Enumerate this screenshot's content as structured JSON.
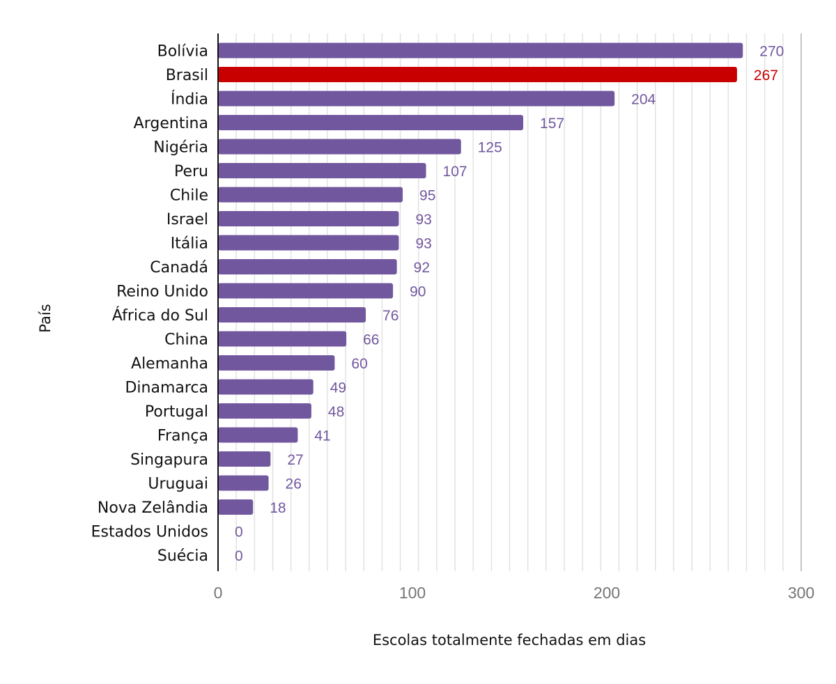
{
  "chart_data": {
    "type": "bar",
    "orientation": "horizontal",
    "categories": [
      "Bolívia",
      "Brasil",
      "Índia",
      "Argentina",
      "Nigéria",
      "Peru",
      "Chile",
      "Israel",
      "Itália",
      "Canadá",
      "Reino Unido",
      "África do Sul",
      "China",
      "Alemanha",
      "Dinamarca",
      "Portugal",
      "França",
      "Singapura",
      "Uruguai",
      "Nova Zelândia",
      "Estados Unidos",
      "Suécia"
    ],
    "values": [
      270,
      267,
      204,
      157,
      125,
      107,
      95,
      93,
      93,
      92,
      90,
      76,
      66,
      60,
      49,
      48,
      41,
      27,
      26,
      18,
      0,
      0
    ],
    "value_labels": [
      "270",
      "267",
      "204",
      "157",
      "125",
      "107",
      "95",
      "93",
      "93",
      "92",
      "90",
      "76",
      "66",
      "60",
      "49",
      "48",
      "41",
      "27",
      "26",
      "18",
      "0",
      "0"
    ],
    "highlight_category": "Brasil",
    "xlabel": "Escolas totalmente fechadas em dias",
    "ylabel": "País",
    "xlim": [
      0,
      300
    ],
    "x_ticks": [
      "0",
      "100",
      "200",
      "300"
    ],
    "grid": true,
    "colors": {
      "bar": "#71579e",
      "highlight": "#c90000",
      "label": "#71579e",
      "highlight_label": "#c90000"
    }
  }
}
